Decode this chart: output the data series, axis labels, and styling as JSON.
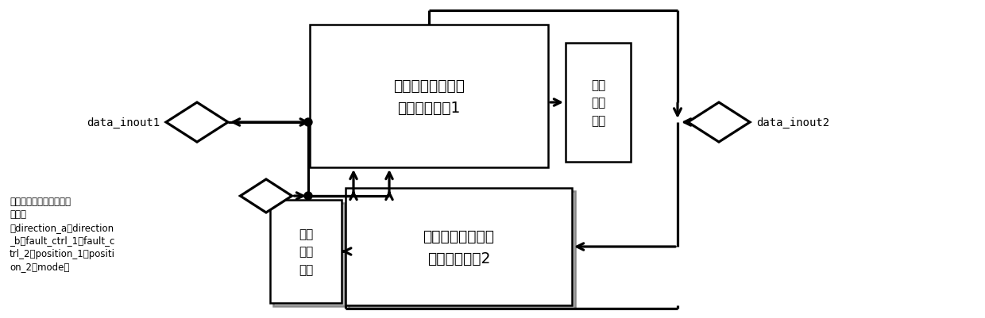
{
  "bg_color": "#ffffff",
  "lc": "#000000",
  "module1_label": "数据方向、注错模\n式等控制模块1",
  "module2_label": "数据方向、注错模\n式等控制模块2",
  "fault1_label": "定制\n故障\n方式",
  "fault2_label": "定制\n故障\n方式",
  "data_inout1_label": "data_inout1",
  "data_inout2_label": "data_inout2",
  "ctrl_line1": "数据方向、注错模式等控",
  "ctrl_line2": "制信号",
  "ctrl_line3": "（direction_a，direction",
  "ctrl_line4": "_b，fault_ctrl_1，fault_c",
  "ctrl_line5": "trl_2，position_1，positi",
  "ctrl_line6": "on_2，mode）"
}
